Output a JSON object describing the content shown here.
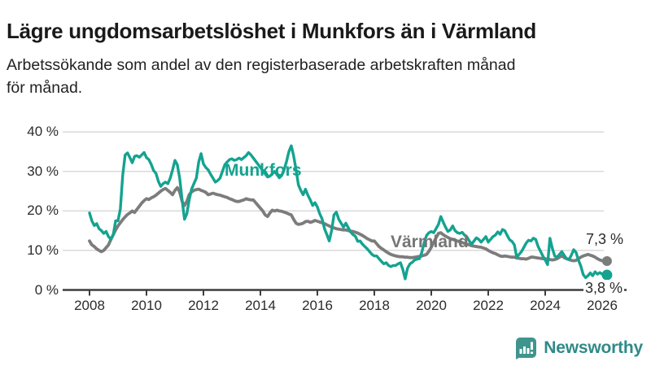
{
  "header": {
    "title": "Lägre ungdomsarbetslöshet i Munkfors än i Värmland",
    "subtitle": "Arbetssökande som andel av den registerbaserade arbetskraften månad för månad.",
    "subtitle_lines": [
      "Arbetssökande som andel av den registerbaserade arbetskraften månad",
      "för månad."
    ]
  },
  "chart_data": {
    "type": "line",
    "x_start": "2008-01",
    "x_end": "2026-02",
    "x_frequency": "monthly",
    "ylim": [
      0,
      40
    ],
    "grid": true,
    "y_ticks": [
      {
        "label": "0 %",
        "value": 0
      },
      {
        "label": "10 %",
        "value": 10
      },
      {
        "label": "20 %",
        "value": 20
      },
      {
        "label": "30 %",
        "value": 30
      },
      {
        "label": "40 %",
        "value": 40
      }
    ],
    "x_ticks": [
      {
        "label": "2008",
        "year": 2008
      },
      {
        "label": "2010",
        "year": 2010
      },
      {
        "label": "2012",
        "year": 2012
      },
      {
        "label": "2014",
        "year": 2014
      },
      {
        "label": "2016",
        "year": 2016
      },
      {
        "label": "2018",
        "year": 2018
      },
      {
        "label": "2020",
        "year": 2020
      },
      {
        "label": "2022",
        "year": 2022
      },
      {
        "label": "2024",
        "year": 2024
      },
      {
        "label": "2026",
        "year": 2026
      }
    ],
    "series": [
      {
        "name": "Värmland",
        "color": "#7c7c7c",
        "stroke_width": 3.8,
        "dot_radius": 6,
        "end_label": "7,3 %",
        "end_value": 7.3,
        "values": [
          12.4,
          11.4,
          11.0,
          10.4,
          10.0,
          9.7,
          10.0,
          10.7,
          11.4,
          12.8,
          14.0,
          15.2,
          16.2,
          17.0,
          17.8,
          18.5,
          19.1,
          19.5,
          20.0,
          19.6,
          20.4,
          21.2,
          22.0,
          22.6,
          23.1,
          22.9,
          23.3,
          23.6,
          24.0,
          24.5,
          25.0,
          25.4,
          25.7,
          25.2,
          24.7,
          24.1,
          25.2,
          25.9,
          24.8,
          22.4,
          21.4,
          22.4,
          24.1,
          24.8,
          25.2,
          25.4,
          25.5,
          25.2,
          25.0,
          24.7,
          24.1,
          24.3,
          24.5,
          24.3,
          24.1,
          24.0,
          23.8,
          23.6,
          23.4,
          23.1,
          22.9,
          22.6,
          22.4,
          22.4,
          22.6,
          22.8,
          23.1,
          22.9,
          22.8,
          22.8,
          22.1,
          21.4,
          20.7,
          20.0,
          19.0,
          18.6,
          19.5,
          20.2,
          20.0,
          20.2,
          20.0,
          19.9,
          19.7,
          19.5,
          19.2,
          19.0,
          17.9,
          16.9,
          16.6,
          16.7,
          16.9,
          17.3,
          17.4,
          17.1,
          17.3,
          17.6,
          17.4,
          17.2,
          17.0,
          16.8,
          16.5,
          16.2,
          15.9,
          15.7,
          15.5,
          15.4,
          15.3,
          15.2,
          15.2,
          15.0,
          14.9,
          14.8,
          14.6,
          14.4,
          14.1,
          13.8,
          13.4,
          13.0,
          12.7,
          12.4,
          12.4,
          11.7,
          11.0,
          10.5,
          10.1,
          9.7,
          9.3,
          9.0,
          8.8,
          8.6,
          8.5,
          8.4,
          8.4,
          8.3,
          8.3,
          8.2,
          8.2,
          8.3,
          8.4,
          8.5,
          8.6,
          8.8,
          9.0,
          9.8,
          10.8,
          12.0,
          13.2,
          14.3,
          14.5,
          14.0,
          13.6,
          13.3,
          13.0,
          12.8,
          12.6,
          12.4,
          12.2,
          12.0,
          11.8,
          11.6,
          11.4,
          11.2,
          11.1,
          11.0,
          10.9,
          10.8,
          10.6,
          10.4,
          10.0,
          9.7,
          9.4,
          9.2,
          8.9,
          8.6,
          8.5,
          8.6,
          8.5,
          8.4,
          8.3,
          8.3,
          8.1,
          8.0,
          7.9,
          7.9,
          7.8,
          8.0,
          8.3,
          8.3,
          8.2,
          8.1,
          8.0,
          7.9,
          7.9,
          7.8,
          7.7,
          7.6,
          7.7,
          7.9,
          8.3,
          8.6,
          8.2,
          7.9,
          7.7,
          7.5,
          7.4,
          7.5,
          7.9,
          8.3,
          8.6,
          8.8,
          9.0,
          8.8,
          8.6,
          8.3,
          7.9,
          7.6,
          7.4,
          7.3
        ]
      },
      {
        "name": "Munkfors",
        "color": "#14a390",
        "stroke_width": 3.4,
        "dot_radius": 6.5,
        "end_label": "3,8 %",
        "end_value": 3.8,
        "values": [
          19.5,
          17.5,
          16.3,
          16.8,
          15.5,
          15.0,
          14.3,
          14.8,
          13.5,
          12.8,
          14.0,
          17.5,
          17.5,
          20.5,
          29.0,
          34.2,
          34.7,
          33.5,
          32.2,
          33.8,
          34.0,
          33.6,
          34.2,
          34.8,
          33.5,
          33.0,
          31.8,
          30.2,
          29.5,
          27.5,
          26.2,
          26.9,
          27.3,
          26.9,
          28.3,
          30.4,
          32.8,
          31.7,
          28.3,
          22.8,
          17.9,
          19.3,
          22.8,
          25.5,
          26.9,
          28.3,
          32.4,
          34.5,
          31.9,
          31.0,
          30.4,
          29.3,
          28.3,
          27.3,
          27.7,
          28.3,
          30.0,
          31.7,
          32.4,
          33.0,
          33.2,
          32.8,
          33.0,
          33.4,
          33.0,
          33.5,
          34.0,
          34.8,
          34.2,
          33.4,
          32.6,
          31.8,
          31.0,
          30.2,
          29.4,
          28.6,
          28.8,
          29.4,
          30.0,
          29.2,
          28.4,
          29.0,
          30.5,
          32.5,
          35.0,
          36.5,
          34.0,
          30.5,
          26.6,
          25.2,
          24.1,
          25.5,
          24.0,
          22.8,
          21.4,
          22.1,
          21.0,
          19.3,
          18.0,
          15.5,
          14.0,
          12.4,
          15.0,
          19.0,
          19.7,
          17.9,
          16.9,
          15.9,
          16.9,
          15.8,
          14.7,
          14.0,
          13.6,
          12.3,
          12.4,
          11.6,
          11.0,
          10.4,
          9.7,
          9.0,
          8.6,
          8.6,
          7.9,
          7.2,
          6.6,
          6.9,
          6.2,
          5.9,
          6.2,
          6.2,
          6.6,
          6.9,
          5.2,
          2.8,
          5.5,
          6.6,
          7.0,
          7.6,
          7.8,
          7.9,
          9.5,
          12.0,
          13.8,
          14.5,
          14.8,
          14.5,
          15.5,
          16.6,
          18.6,
          17.2,
          15.9,
          14.8,
          15.2,
          16.2,
          15.0,
          14.5,
          14.3,
          14.6,
          13.9,
          13.4,
          12.4,
          11.6,
          12.4,
          13.2,
          12.8,
          12.1,
          12.8,
          13.5,
          12.1,
          12.8,
          13.5,
          13.9,
          14.7,
          14.1,
          15.3,
          15.0,
          13.8,
          12.7,
          12.3,
          11.4,
          8.3,
          9.0,
          9.7,
          10.8,
          11.9,
          12.6,
          12.4,
          13.1,
          12.8,
          11.0,
          9.8,
          8.6,
          7.6,
          6.4,
          13.1,
          10.5,
          8.6,
          8.3,
          9.0,
          9.7,
          8.8,
          7.9,
          7.7,
          8.8,
          10.2,
          9.5,
          7.6,
          6.0,
          3.9,
          3.1,
          3.6,
          4.3,
          3.6,
          4.6,
          4.0,
          4.4,
          4.0,
          3.8
        ]
      }
    ],
    "colors": {
      "grid": "#d9d9d9",
      "axis": "#3d3d3d",
      "tick_text": "#2b2b2b"
    }
  },
  "footer": {
    "brand": "Newsworthy",
    "brand_color": "#2f8a87",
    "brand_icon": "bar-chart-speech-bubble-icon",
    "brand_icon_color": "#3f958d"
  }
}
